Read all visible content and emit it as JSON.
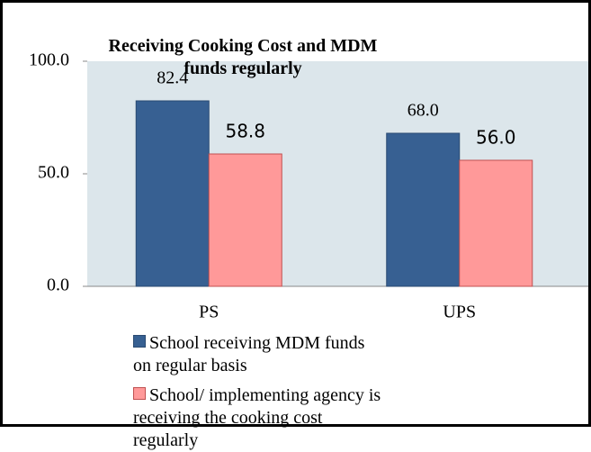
{
  "chart_data": {
    "type": "bar",
    "title": "Receiving Cooking Cost and MDM funds regularly",
    "categories": [
      "PS",
      "UPS"
    ],
    "series": [
      {
        "name": "School receiving MDM funds on regular basis",
        "color": "#376092",
        "values": [
          82.4,
          68.0
        ],
        "value_labels": [
          "82.4",
          "68.0"
        ]
      },
      {
        "name": "School/ implementing agency is receiving the cooking cost regularly",
        "color": "#ff9999",
        "values": [
          58.8,
          56.0
        ],
        "value_labels": [
          "58.8",
          "56.0"
        ]
      }
    ],
    "ylim": [
      0,
      100
    ],
    "yticks": [
      {
        "value": 0,
        "label": "0.0"
      },
      {
        "value": 50,
        "label": "50.0"
      },
      {
        "value": 100,
        "label": "100.0"
      }
    ]
  }
}
